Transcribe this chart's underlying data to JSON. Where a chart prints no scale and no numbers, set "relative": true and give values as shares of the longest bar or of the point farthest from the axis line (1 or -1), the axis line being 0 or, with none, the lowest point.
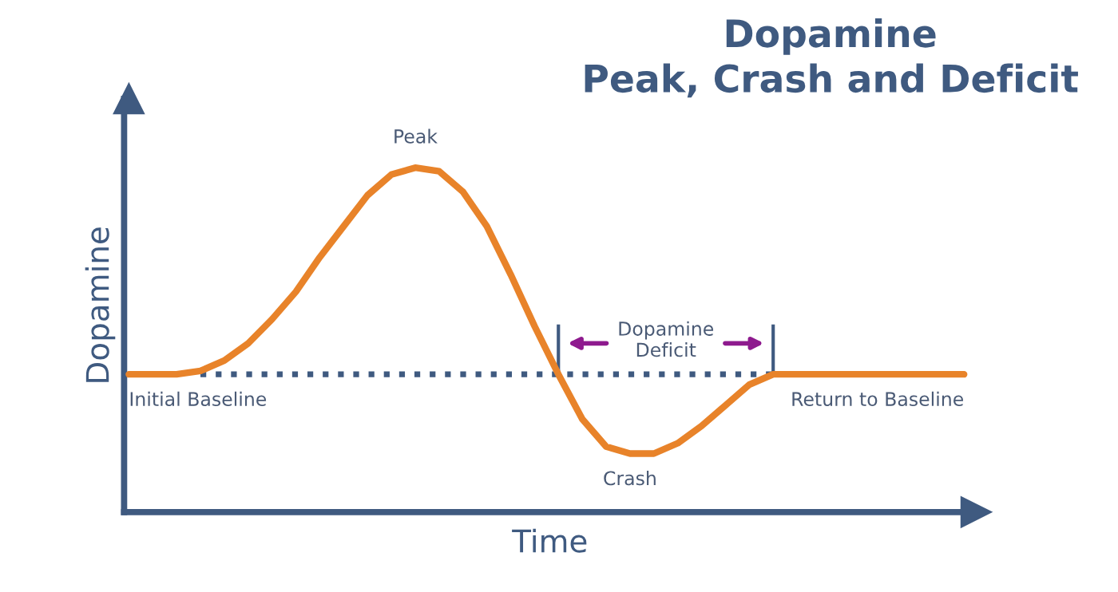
{
  "chart_data": {
    "type": "line",
    "title": "Dopamine\nPeak, Crash and Deficit",
    "xlabel": "Time",
    "ylabel": "Dopamine",
    "relative": true,
    "ref_lines": [
      {
        "axis": "y",
        "value": 0,
        "color": "#3f5a80"
      }
    ],
    "categories": [
      null,
      null,
      null,
      null,
      null,
      null,
      null,
      null,
      null,
      null,
      null,
      null,
      null,
      null,
      null,
      null,
      null,
      null,
      null,
      null,
      null,
      null,
      null,
      null,
      null,
      null,
      null,
      null,
      null,
      null,
      null,
      null,
      null,
      null,
      null,
      null
    ],
    "series": [
      {
        "color": "#e8832a",
        "line_style": "solid",
        "values": [
          0.4,
          0.4,
          0.4,
          0.41,
          0.44,
          0.49,
          0.56,
          0.64,
          0.74,
          0.83,
          0.92,
          0.98,
          1,
          0.99,
          0.93,
          0.83,
          0.69,
          0.54,
          0.4,
          0.27,
          0.19,
          0.17,
          0.17,
          0.2,
          0.25,
          0.31,
          0.37,
          0.4,
          0.4,
          0.4,
          0.4,
          0.4,
          0.4,
          0.4,
          0.4,
          0.4
        ]
      },
      {
        "color": "#3f5a80",
        "line_style": "dotted",
        "values": [
          null,
          null,
          null,
          0.4,
          0.4,
          0.4,
          0.4,
          0.4,
          0.4,
          0.4,
          0.4,
          0.4,
          0.4,
          0.4,
          0.4,
          0.4,
          0.4,
          0.4,
          0.4,
          0.4,
          0.4,
          0.4,
          0.4,
          0.4,
          0.4,
          0.4,
          0.4,
          0.4,
          null,
          null,
          null,
          null,
          null,
          null,
          null,
          null
        ]
      }
    ],
    "annotations": [
      "Peak",
      "Dopamine\nDeficit",
      "Initial Baseline",
      "Crash",
      "Return to Baseline"
    ]
  }
}
